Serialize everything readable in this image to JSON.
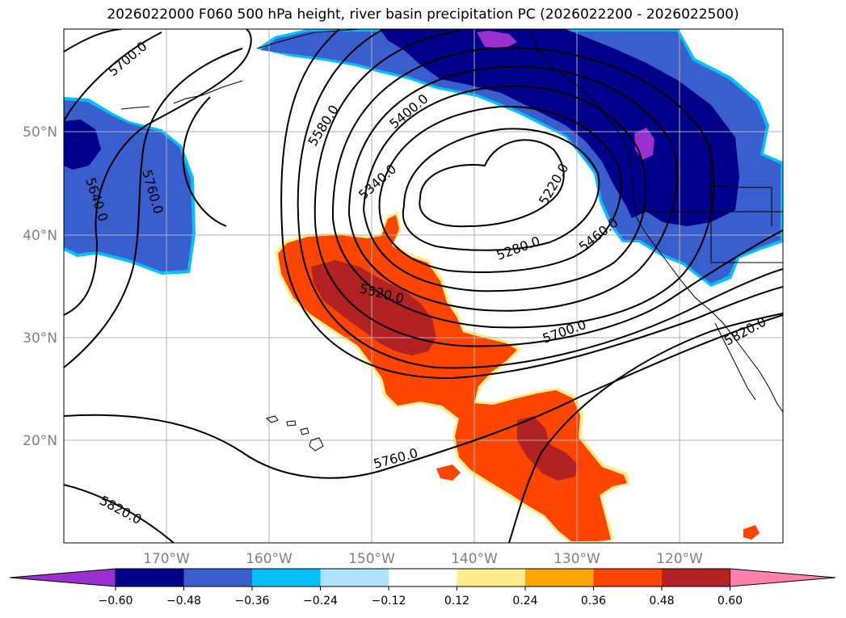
{
  "title": "2026022000 F060 500 hPa height, river basin precipitation PC (2026022200 - 2026022500)",
  "map": {
    "lat_labels": [
      "50°N",
      "40°N",
      "30°N",
      "20°N"
    ],
    "lon_labels": [
      "170°W",
      "160°W",
      "150°W",
      "140°W",
      "130°W",
      "120°W"
    ],
    "contour_labels": [
      "5700.0",
      "5580.0",
      "5400.0",
      "5340.0",
      "5220.0",
      "5280.0",
      "5460.0",
      "5520.0",
      "5700.0",
      "5640.0",
      "5760.0",
      "5760.0",
      "5820.0",
      "5820.0"
    ]
  },
  "colorbar": {
    "colors": [
      "#9b30d0",
      "#00008b",
      "#3a5fcd",
      "#00bfff",
      "#b0e2ff",
      "#ffffff",
      "#ffec8b",
      "#ffa500",
      "#ff4500",
      "#b22222",
      "#ff82ab"
    ],
    "tick_labels": [
      "−0.60",
      "−0.48",
      "−0.36",
      "−0.24",
      "−0.12",
      "0.12",
      "0.24",
      "0.36",
      "0.48",
      "0.60"
    ]
  }
}
